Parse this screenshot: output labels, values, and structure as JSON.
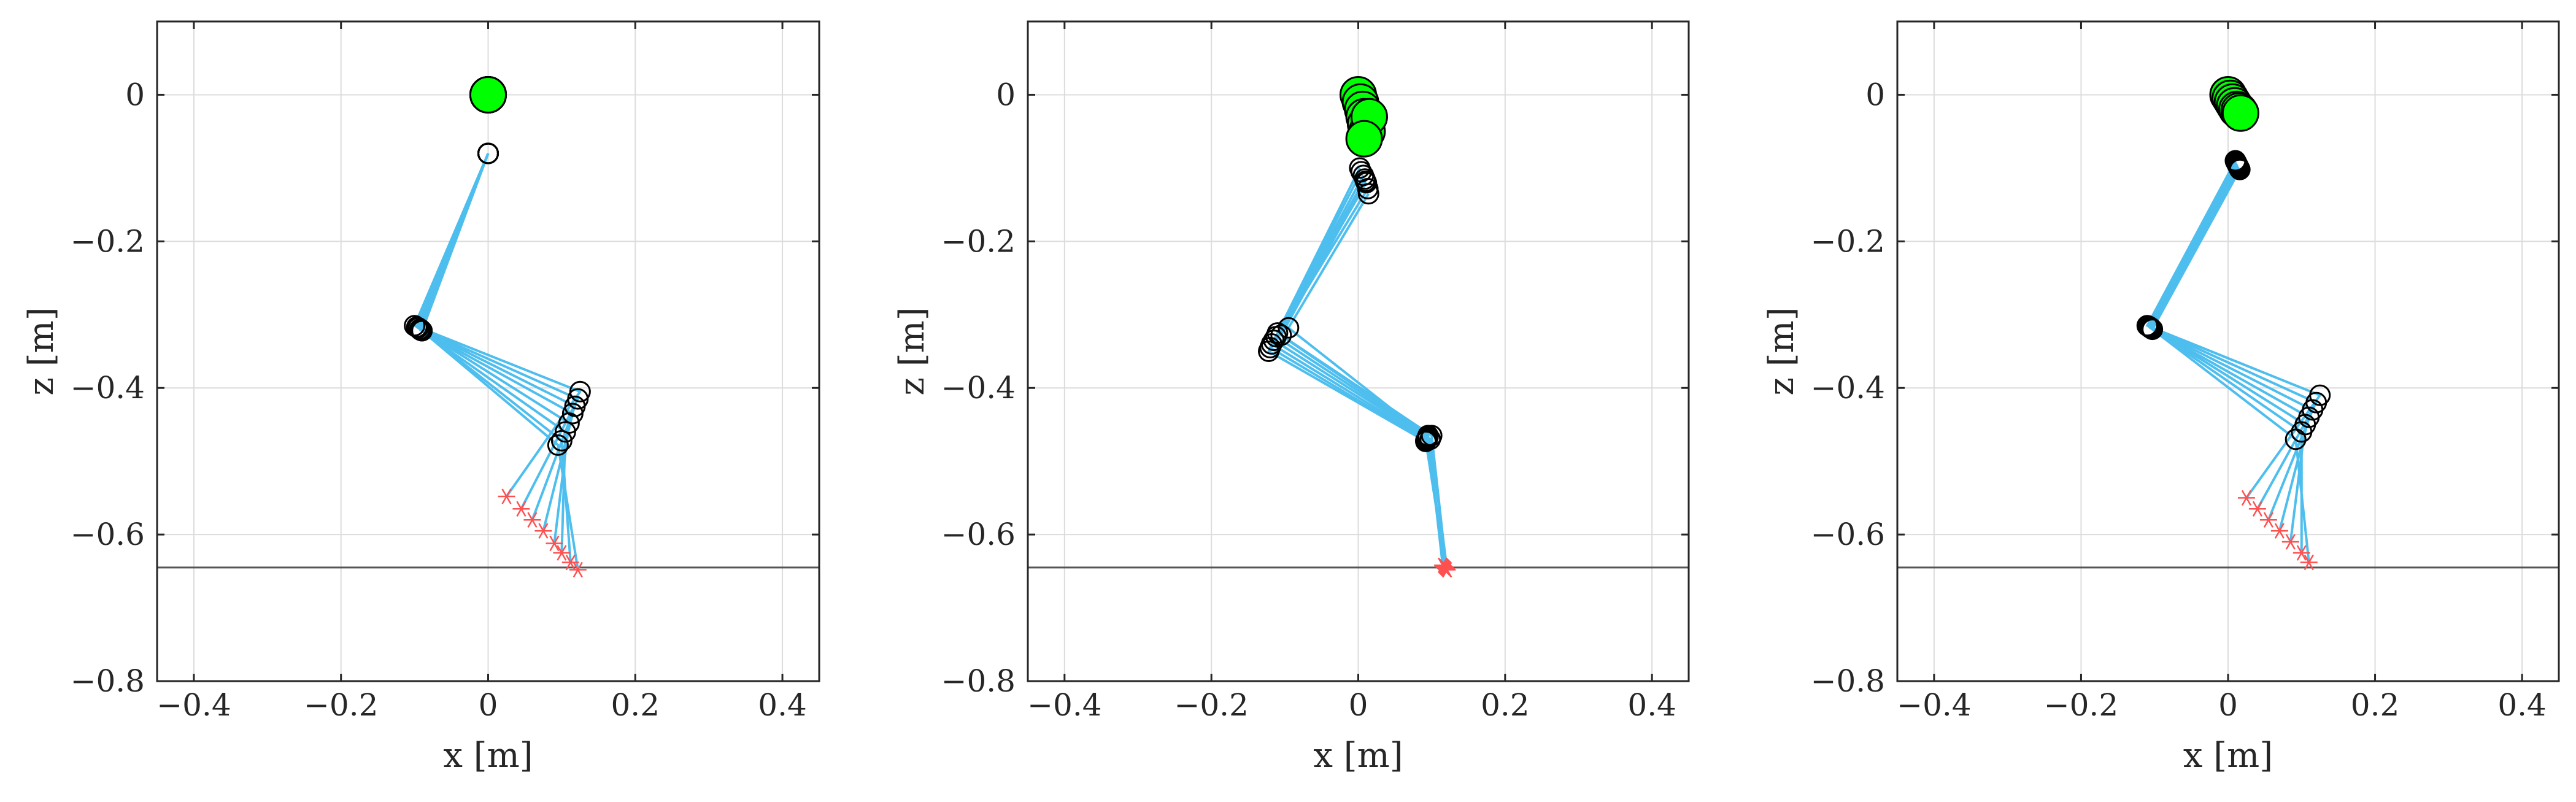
{
  "colors": {
    "link": "#4DBEEE",
    "hip": "#00FF00",
    "joint_edge": "#000000",
    "foot": "#FF5050",
    "ground": "#555555",
    "grid": "#dcdcdc",
    "axes": "#262626"
  },
  "chart_data": [
    {
      "type": "scatter",
      "xlabel": "x [m]",
      "ylabel": "z [m]",
      "xlim": [
        -0.45,
        0.45
      ],
      "ylim": [
        -0.8,
        0.1
      ],
      "xticks": [
        -0.4,
        -0.2,
        0,
        0.2,
        0.4
      ],
      "yticks": [
        0,
        -0.2,
        -0.4,
        -0.6,
        -0.8
      ],
      "xtick_labels": [
        "−0.4",
        "−0.2",
        "0",
        "0.2",
        "0.4"
      ],
      "ytick_labels": [
        "0",
        "−0.2",
        "−0.4",
        "−0.6",
        "−0.8"
      ],
      "grid": true,
      "ground_z": -0.645,
      "frames": [
        {
          "hip": [
            0,
            0
          ],
          "j1": [
            0,
            -0.08
          ],
          "knee": [
            -0.1,
            -0.315
          ],
          "ankle": [
            0.125,
            -0.405
          ],
          "foot": [
            0.025,
            -0.548
          ]
        },
        {
          "hip": [
            0,
            0
          ],
          "j1": [
            0,
            -0.08
          ],
          "knee": [
            -0.097,
            -0.317
          ],
          "ankle": [
            0.122,
            -0.415
          ],
          "foot": [
            0.045,
            -0.565
          ]
        },
        {
          "hip": [
            0,
            0
          ],
          "j1": [
            0,
            -0.08
          ],
          "knee": [
            -0.095,
            -0.318
          ],
          "ankle": [
            0.118,
            -0.425
          ],
          "foot": [
            0.06,
            -0.58
          ]
        },
        {
          "hip": [
            0,
            0
          ],
          "j1": [
            0,
            -0.08
          ],
          "knee": [
            -0.093,
            -0.32
          ],
          "ankle": [
            0.115,
            -0.435
          ],
          "foot": [
            0.075,
            -0.595
          ]
        },
        {
          "hip": [
            0,
            0
          ],
          "j1": [
            0,
            -0.08
          ],
          "knee": [
            -0.092,
            -0.32
          ],
          "ankle": [
            0.11,
            -0.448
          ],
          "foot": [
            0.09,
            -0.612
          ]
        },
        {
          "hip": [
            0,
            0
          ],
          "j1": [
            0,
            -0.08
          ],
          "knee": [
            -0.092,
            -0.321
          ],
          "ankle": [
            0.105,
            -0.46
          ],
          "foot": [
            0.1,
            -0.625
          ]
        },
        {
          "hip": [
            0,
            0
          ],
          "j1": [
            0,
            -0.08
          ],
          "knee": [
            -0.09,
            -0.322
          ],
          "ankle": [
            0.1,
            -0.472
          ],
          "foot": [
            0.112,
            -0.638
          ]
        },
        {
          "hip": [
            0,
            0
          ],
          "j1": [
            0,
            -0.08
          ],
          "knee": [
            -0.09,
            -0.322
          ],
          "ankle": [
            0.095,
            -0.478
          ],
          "foot": [
            0.122,
            -0.648
          ]
        }
      ]
    },
    {
      "type": "scatter",
      "xlabel": "x [m]",
      "ylabel": "z [m]",
      "xlim": [
        -0.45,
        0.45
      ],
      "ylim": [
        -0.8,
        0.1
      ],
      "xticks": [
        -0.4,
        -0.2,
        0,
        0.2,
        0.4
      ],
      "yticks": [
        0,
        -0.2,
        -0.4,
        -0.6,
        -0.8
      ],
      "xtick_labels": [
        "−0.4",
        "−0.2",
        "0",
        "0.2",
        "0.4"
      ],
      "ytick_labels": [
        "0",
        "−0.2",
        "−0.4",
        "−0.6",
        "−0.8"
      ],
      "grid": true,
      "ground_z": -0.645,
      "frames": [
        {
          "hip": [
            0,
            0
          ],
          "j1": [
            0.002,
            -0.1
          ],
          "knee": [
            -0.11,
            -0.325
          ],
          "ankle": [
            0.095,
            -0.465
          ],
          "foot": [
            0.115,
            -0.642
          ]
        },
        {
          "hip": [
            0.003,
            -0.01
          ],
          "j1": [
            0.004,
            -0.105
          ],
          "knee": [
            -0.112,
            -0.33
          ],
          "ankle": [
            0.095,
            -0.467
          ],
          "foot": [
            0.116,
            -0.643
          ]
        },
        {
          "hip": [
            0.006,
            -0.02
          ],
          "j1": [
            0.007,
            -0.11
          ],
          "knee": [
            -0.115,
            -0.335
          ],
          "ankle": [
            0.094,
            -0.468
          ],
          "foot": [
            0.117,
            -0.644
          ]
        },
        {
          "hip": [
            0.008,
            -0.03
          ],
          "j1": [
            0.009,
            -0.115
          ],
          "knee": [
            -0.118,
            -0.34
          ],
          "ankle": [
            0.093,
            -0.47
          ],
          "foot": [
            0.118,
            -0.645
          ]
        },
        {
          "hip": [
            0.01,
            -0.04
          ],
          "j1": [
            0.011,
            -0.12
          ],
          "knee": [
            -0.12,
            -0.345
          ],
          "ankle": [
            0.092,
            -0.472
          ],
          "foot": [
            0.119,
            -0.646
          ]
        },
        {
          "hip": [
            0.012,
            -0.05
          ],
          "j1": [
            0.013,
            -0.128
          ],
          "knee": [
            -0.122,
            -0.35
          ],
          "ankle": [
            0.092,
            -0.473
          ],
          "foot": [
            0.12,
            -0.647
          ]
        },
        {
          "hip": [
            0.015,
            -0.03
          ],
          "j1": [
            0.014,
            -0.135
          ],
          "knee": [
            -0.095,
            -0.318
          ],
          "ankle": [
            0.098,
            -0.47
          ],
          "foot": [
            0.121,
            -0.648
          ]
        },
        {
          "hip": [
            0.008,
            -0.06
          ],
          "j1": [
            0.01,
            -0.118
          ],
          "knee": [
            -0.105,
            -0.328
          ],
          "ankle": [
            0.1,
            -0.465
          ],
          "foot": [
            0.12,
            -0.647
          ]
        }
      ]
    },
    {
      "type": "scatter",
      "xlabel": "x [m]",
      "ylabel": "z [m]",
      "xlim": [
        -0.45,
        0.45
      ],
      "ylim": [
        -0.8,
        0.1
      ],
      "xticks": [
        -0.4,
        -0.2,
        0,
        0.2,
        0.4
      ],
      "yticks": [
        0,
        -0.2,
        -0.4,
        -0.6,
        -0.8
      ],
      "xtick_labels": [
        "−0.4",
        "−0.2",
        "0",
        "0.2",
        "0.4"
      ],
      "ytick_labels": [
        "0",
        "−0.2",
        "−0.4",
        "−0.6",
        "−0.8"
      ],
      "grid": true,
      "ground_z": -0.645,
      "frames": [
        {
          "hip": [
            0,
            0
          ],
          "j1": [
            0.01,
            -0.09
          ],
          "knee": [
            -0.11,
            -0.315
          ],
          "ankle": [
            0.125,
            -0.41
          ],
          "foot": [
            0.025,
            -0.55
          ]
        },
        {
          "hip": [
            0.003,
            -0.005
          ],
          "j1": [
            0.011,
            -0.092
          ],
          "knee": [
            -0.108,
            -0.316
          ],
          "ankle": [
            0.12,
            -0.42
          ],
          "foot": [
            0.04,
            -0.565
          ]
        },
        {
          "hip": [
            0.006,
            -0.01
          ],
          "j1": [
            0.012,
            -0.094
          ],
          "knee": [
            -0.107,
            -0.317
          ],
          "ankle": [
            0.115,
            -0.43
          ],
          "foot": [
            0.055,
            -0.58
          ]
        },
        {
          "hip": [
            0.009,
            -0.015
          ],
          "j1": [
            0.013,
            -0.096
          ],
          "knee": [
            -0.106,
            -0.318
          ],
          "ankle": [
            0.11,
            -0.44
          ],
          "foot": [
            0.07,
            -0.595
          ]
        },
        {
          "hip": [
            0.012,
            -0.02
          ],
          "j1": [
            0.014,
            -0.098
          ],
          "knee": [
            -0.105,
            -0.318
          ],
          "ankle": [
            0.105,
            -0.45
          ],
          "foot": [
            0.085,
            -0.61
          ]
        },
        {
          "hip": [
            0.015,
            -0.022
          ],
          "j1": [
            0.015,
            -0.1
          ],
          "knee": [
            -0.104,
            -0.319
          ],
          "ankle": [
            0.1,
            -0.46
          ],
          "foot": [
            0.1,
            -0.625
          ]
        },
        {
          "hip": [
            0.017,
            -0.025
          ],
          "j1": [
            0.016,
            -0.102
          ],
          "knee": [
            -0.103,
            -0.32
          ],
          "ankle": [
            0.092,
            -0.47
          ],
          "foot": [
            0.11,
            -0.638
          ]
        }
      ]
    }
  ]
}
